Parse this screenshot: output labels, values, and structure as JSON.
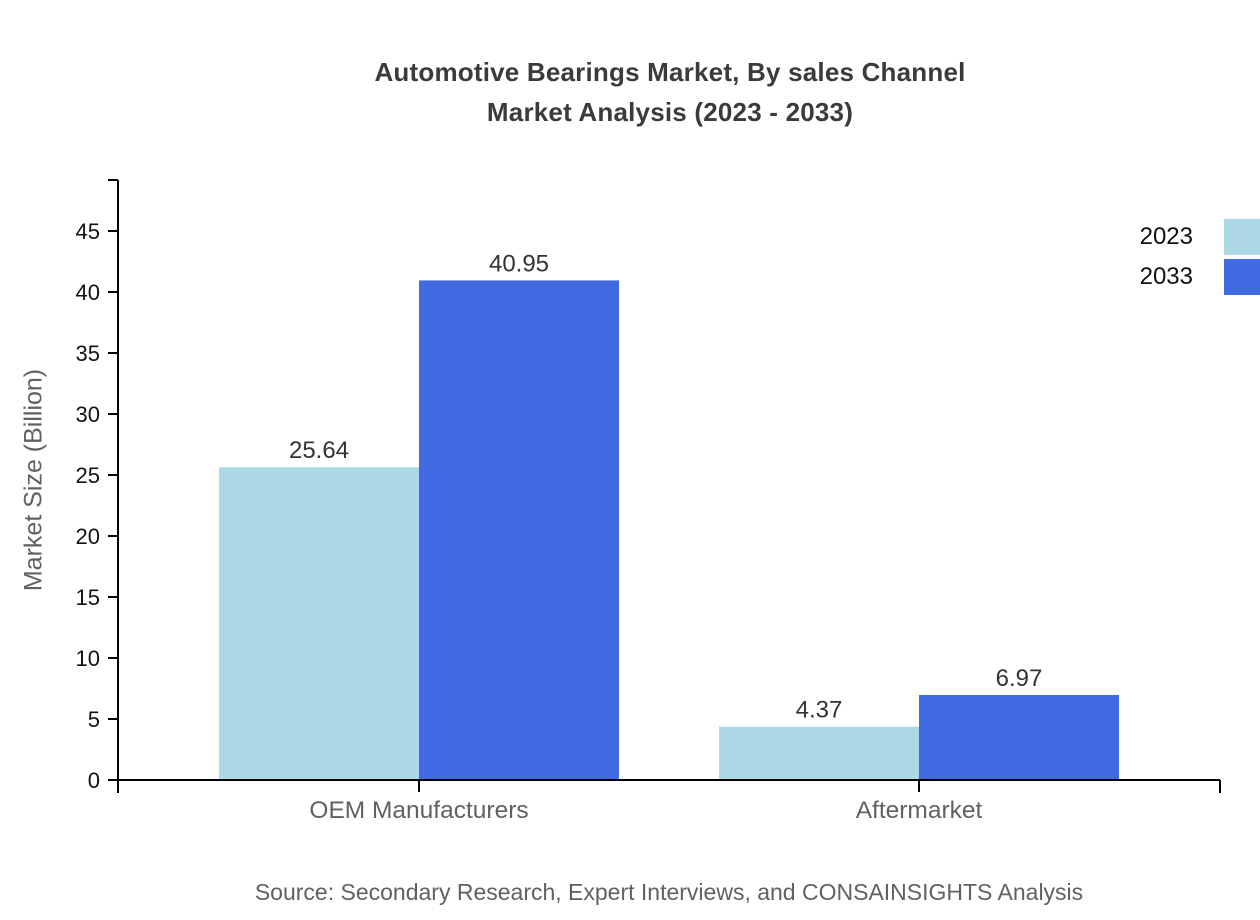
{
  "title": {
    "line1": "Automotive Bearings Market, By sales Channel",
    "line2": "Market Analysis (2023 - 2033)"
  },
  "source": "Source: Secondary Research, Expert Interviews, and CONSAINSIGHTS Analysis",
  "chart_data": {
    "type": "bar",
    "categories": [
      "OEM Manufacturers",
      "Aftermarket"
    ],
    "series": [
      {
        "name": "2023",
        "color": "#ADD8E6",
        "values": [
          25.64,
          4.37
        ]
      },
      {
        "name": "2033",
        "color": "#4169E1",
        "values": [
          40.95,
          6.97
        ]
      }
    ],
    "title": "Automotive Bearings Market, By sales Channel Market Analysis (2023 - 2033)",
    "xlabel": "",
    "ylabel": "Market Size (Billion)",
    "yticks": [
      0,
      5,
      10,
      15,
      20,
      25,
      30,
      35,
      40,
      45
    ],
    "ylim": [
      0,
      49.2
    ],
    "grid": false,
    "legend_position": "top-right",
    "value_labels": true,
    "value_label_format": "2-decimals"
  },
  "colors": {
    "axis": "#000000",
    "tick_label": "#111111",
    "value_label": "#333333",
    "category_label": "#616161",
    "muted_text": "#616161",
    "title_text": "#3b3b3b"
  }
}
